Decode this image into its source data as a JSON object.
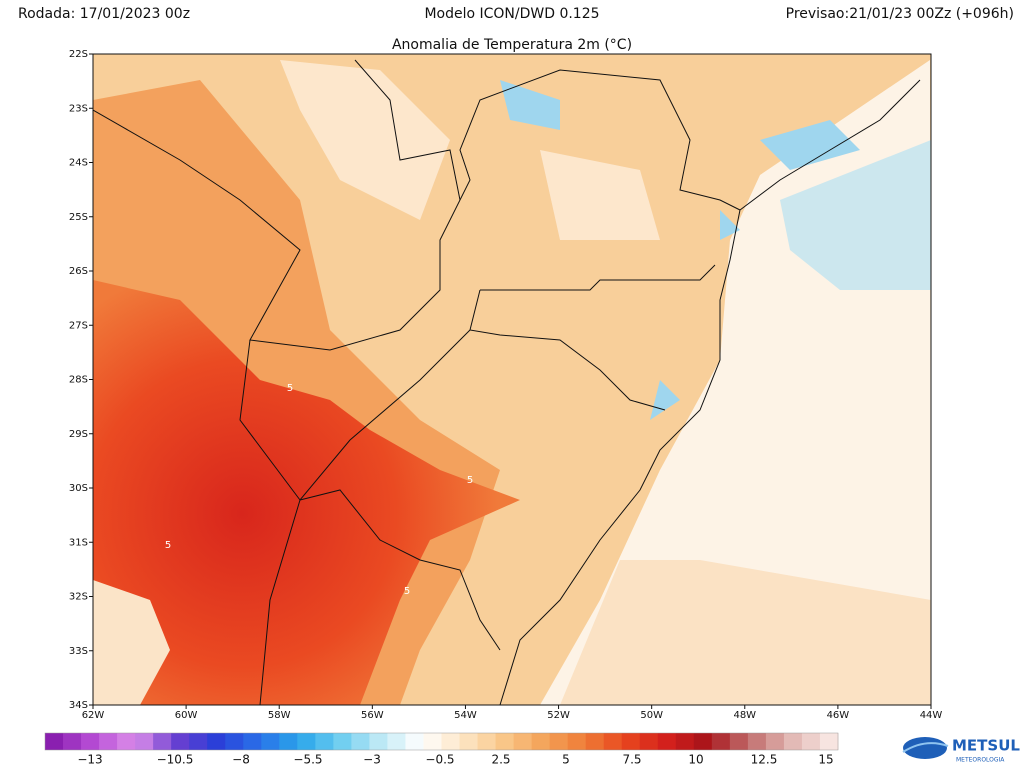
{
  "header": {
    "run": "Rodada: 17/01/2023 00z",
    "model": "Modelo ICON/DWD 0.125",
    "forecast": "Previsao:21/01/23 00Zz (+096h)"
  },
  "map": {
    "title": "Anomalia de Temperatura 2m (°C)",
    "lat_labels": [
      "22S",
      "23S",
      "24S",
      "25S",
      "26S",
      "27S",
      "28S",
      "29S",
      "30S",
      "31S",
      "32S",
      "33S",
      "34S"
    ],
    "lon_labels": [
      "62W",
      "60W",
      "58W",
      "56W",
      "54W",
      "52W",
      "50W",
      "48W",
      "46W",
      "44W"
    ],
    "contour_labels": [
      "5",
      "5",
      "5",
      "5"
    ]
  },
  "colorbar": {
    "labels": [
      "−13",
      "−10.5",
      "−8",
      "−5.5",
      "−3",
      "−0.5",
      "2.5",
      "5",
      "7.5",
      "10",
      "12.5",
      "15"
    ]
  },
  "logo": {
    "name": "METSUL",
    "tagline": "METEOROLOGIA"
  }
}
